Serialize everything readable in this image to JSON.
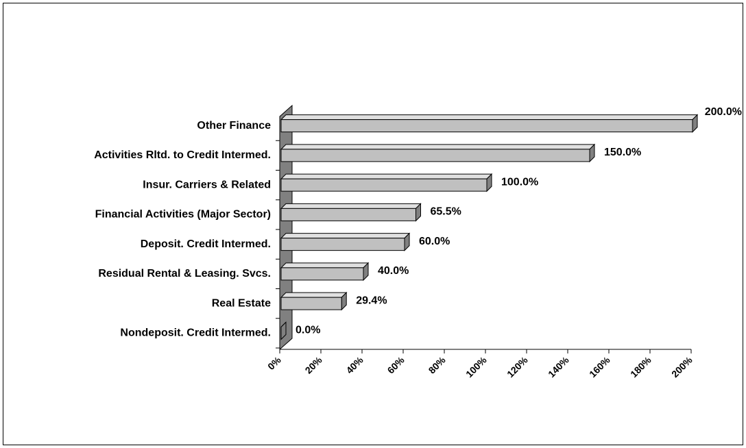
{
  "chart_data": {
    "type": "bar",
    "orientation": "horizontal",
    "categories": [
      "Other Finance",
      "Activities Rltd. to Credit Intermed.",
      "Insur. Carriers & Related",
      "Financial Activities (Major Sector)",
      "Deposit. Credit Intermed.",
      "Residual Rental & Leasing. Svcs.",
      "Real Estate",
      "Nondeposit. Credit Intermed."
    ],
    "values": [
      200,
      150,
      100,
      65.5,
      60,
      40,
      29.4,
      0
    ],
    "value_labels": [
      "200.0%",
      "150.0%",
      "100.0%",
      "65.5%",
      "60.0%",
      "40.0%",
      "29.4%",
      "0.0%"
    ],
    "color": "#c0c0c0",
    "xlim": [
      0,
      200
    ],
    "xticks": [
      {
        "value": 0,
        "label": "0%"
      },
      {
        "value": 20,
        "label": "20%"
      },
      {
        "value": 40,
        "label": "40%"
      },
      {
        "value": 60,
        "label": "60%"
      },
      {
        "value": 80,
        "label": "80%"
      },
      {
        "value": 100,
        "label": "100%"
      },
      {
        "value": 120,
        "label": "120%"
      },
      {
        "value": 140,
        "label": "140%"
      },
      {
        "value": 160,
        "label": "160%"
      },
      {
        "value": 180,
        "label": "180%"
      },
      {
        "value": 200,
        "label": "200%"
      }
    ],
    "grid": false
  }
}
